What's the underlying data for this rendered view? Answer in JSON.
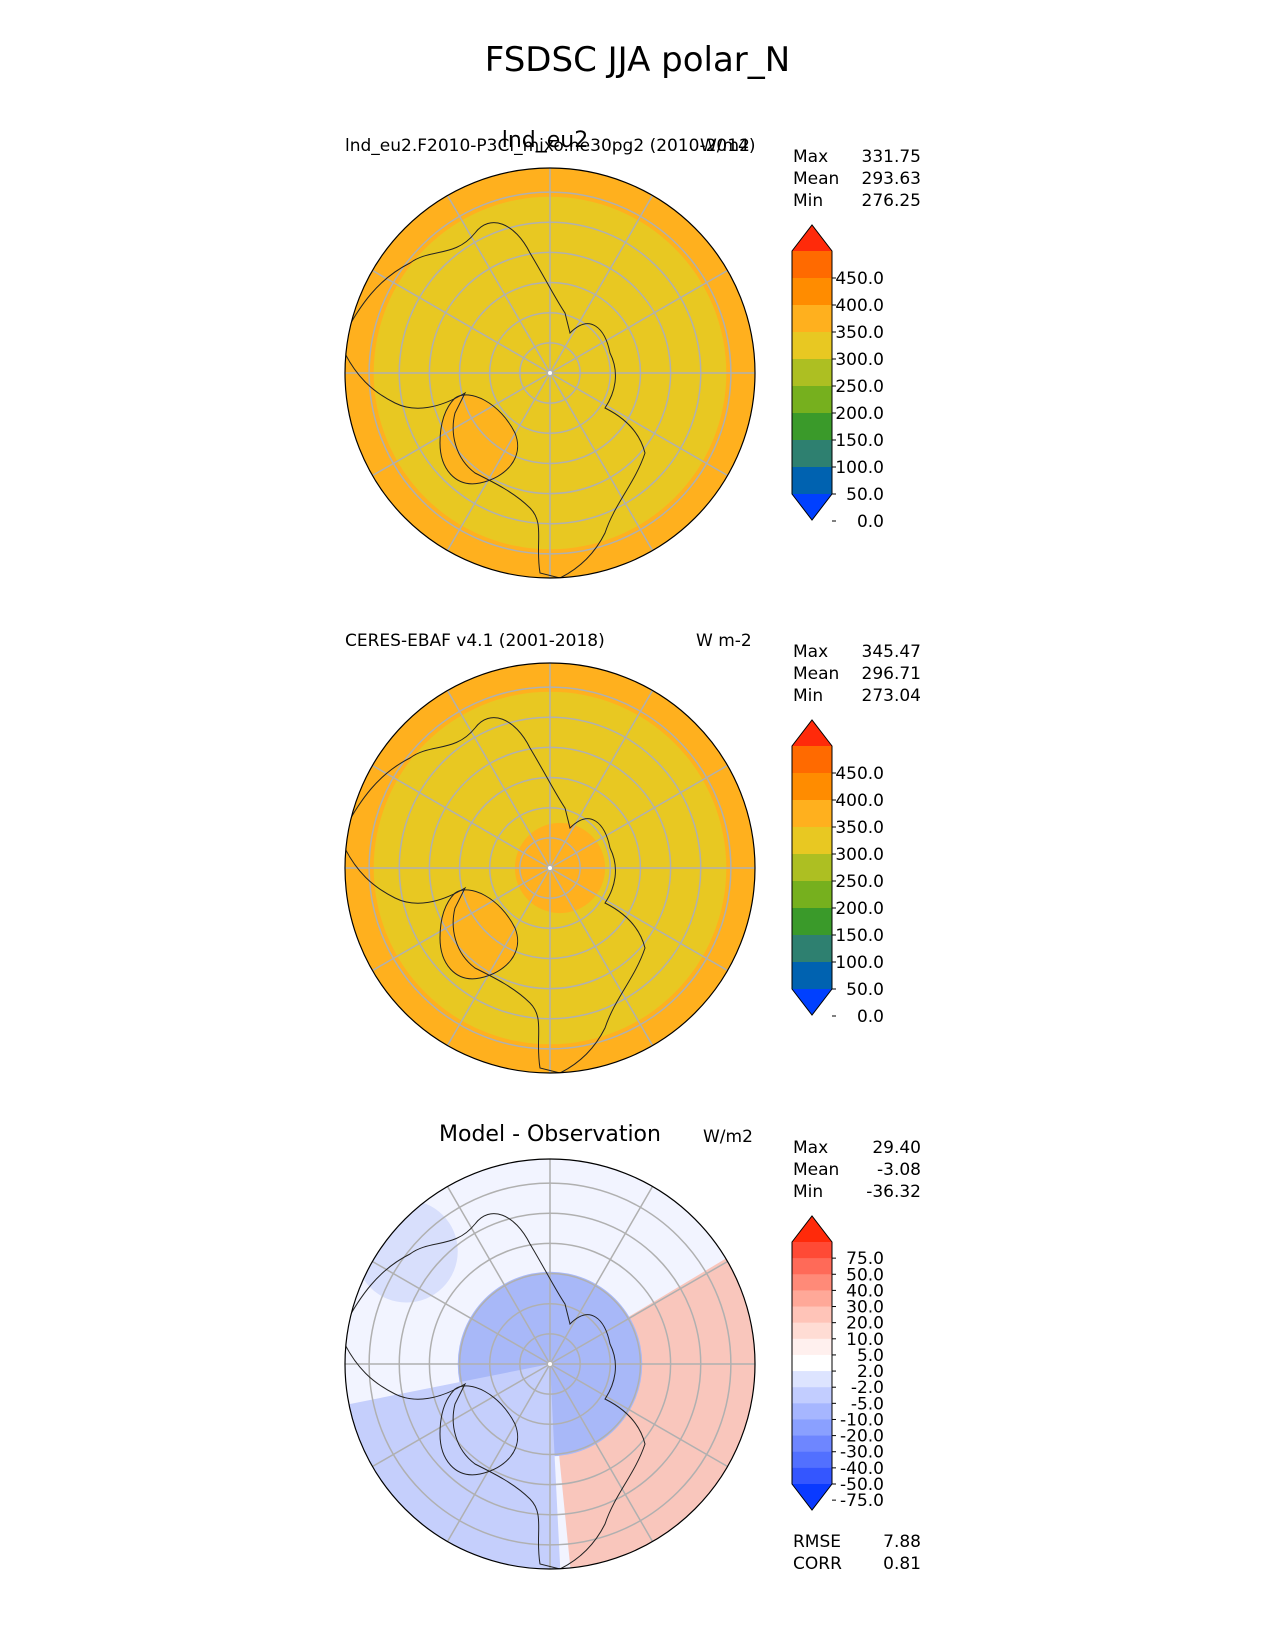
{
  "figure_title": "FSDSC JJA polar_N",
  "panels": [
    {
      "title": "lnd_eu2",
      "left_label": "lnd_eu2.F2010-P3Cl_mixo.ne30pg2 (2010-2014)",
      "units": "W/m2",
      "stats": [
        {
          "label": "Max",
          "value": "331.75"
        },
        {
          "label": "Mean",
          "value": "293.63"
        },
        {
          "label": "Min",
          "value": "276.25"
        }
      ]
    },
    {
      "title": "",
      "left_label": "CERES-EBAF v4.1 (2001-2018)",
      "units": "W m-2",
      "stats": [
        {
          "label": "Max",
          "value": "345.47"
        },
        {
          "label": "Mean",
          "value": "296.71"
        },
        {
          "label": "Min",
          "value": "273.04"
        }
      ]
    },
    {
      "title": "Model - Observation",
      "left_label": "",
      "units": "W/m2",
      "stats": [
        {
          "label": "Max",
          "value": "29.40"
        },
        {
          "label": "Mean",
          "value": "-3.08"
        },
        {
          "label": "Min",
          "value": "-36.32"
        }
      ],
      "metrics": [
        {
          "label": "RMSE",
          "value": "7.88"
        },
        {
          "label": "CORR",
          "value": "0.81"
        }
      ]
    }
  ],
  "colorbar_main": {
    "labels": [
      "450.0",
      "400.0",
      "350.0",
      "300.0",
      "250.0",
      "200.0",
      "150.0",
      "100.0",
      "50.0",
      "0.0"
    ],
    "colors": [
      "#ff2a0a",
      "#ff6a00",
      "#ff8c00",
      "#ffb01e",
      "#e8c822",
      "#adbf22",
      "#76b01e",
      "#3a9a2a",
      "#2e8070",
      "#0062b0",
      "#0040ff"
    ]
  },
  "colorbar_diff": {
    "labels": [
      "75.0",
      "50.0",
      "40.0",
      "30.0",
      "20.0",
      "10.0",
      "5.0",
      "2.0",
      "-2.0",
      "-5.0",
      "-10.0",
      "-20.0",
      "-30.0",
      "-40.0",
      "-50.0",
      "-75.0"
    ],
    "colors": [
      "#ff2a0a",
      "#ff4a35",
      "#ff6a58",
      "#ff8a78",
      "#ffa898",
      "#ffc4b8",
      "#ffdcd4",
      "#fff0ee",
      "#ffffff",
      "#dde4ff",
      "#c2cdff",
      "#a6b6ff",
      "#8aa0ff",
      "#6e86ff",
      "#5270ff",
      "#3456ff",
      "#0a3aff"
    ]
  },
  "map_colors": {
    "ocean_outer": "#ffb01e",
    "inner_band": "#e8c822",
    "diff_blue": "#a8b8f8",
    "diff_red": "#f9c6bc",
    "grid": "#b0b0b0"
  }
}
